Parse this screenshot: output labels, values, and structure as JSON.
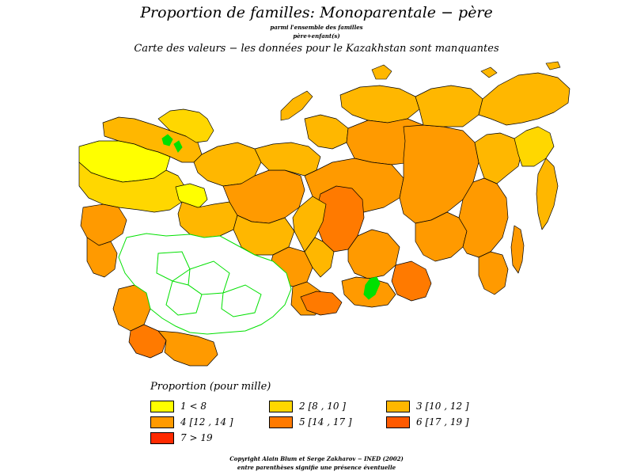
{
  "header": {
    "title": "Proportion de familles: Monoparentale − père",
    "subtitle_line1": "parmi l'ensemble des familles",
    "subtitle_line2": "père+enfant(s)",
    "subtitle_line3": "Carte des valeurs − les données pour le Kazakhstan sont manquantes"
  },
  "legend": {
    "title": "Proportion (pour mille)",
    "items": [
      {
        "label": "1 < 8",
        "color": "#ffff00"
      },
      {
        "label": "2 [8 , 10 ]",
        "color": "#ffd700"
      },
      {
        "label": "3 [10 , 12 ]",
        "color": "#ffb700"
      },
      {
        "label": "4 [12 , 14 ]",
        "color": "#ff9a00"
      },
      {
        "label": "5 [14 , 17 ]",
        "color": "#ff7a00"
      },
      {
        "label": "6 [17 , 19 ]",
        "color": "#ff5a00"
      },
      {
        "label": "7 > 19",
        "color": "#ff2a00"
      }
    ]
  },
  "map": {
    "missing_color": "#ffffff",
    "border_color_missing": "#00e000",
    "border_color": "#000000",
    "water_color": "#00e000"
  },
  "footer": {
    "copyright": "Copyright Alain Blum et Serge Zakharov − INED (2002)",
    "note": "entre parenthèses signifie une présence éventuelle"
  }
}
